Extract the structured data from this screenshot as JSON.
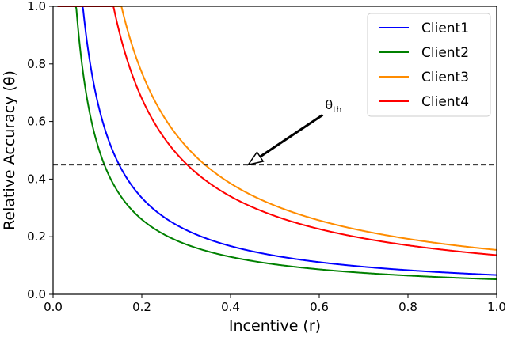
{
  "chart_data": {
    "type": "line",
    "title": "",
    "xlabel": "Incentive (r)",
    "ylabel": "Relative Accuracy (θ)",
    "xlim": [
      0,
      1
    ],
    "ylim": [
      0,
      1
    ],
    "x_ticks": [
      "0.0",
      "0.2",
      "0.4",
      "0.6",
      "0.8",
      "1.0"
    ],
    "y_ticks": [
      "0.0",
      "0.2",
      "0.4",
      "0.6",
      "0.8",
      "1.0"
    ],
    "grid": false,
    "legend_position": "top-right",
    "series": [
      {
        "name": "Client1",
        "color": "#0000ff",
        "k": 0.067,
        "x_min": 0.01,
        "x_max": 1.0
      },
      {
        "name": "Client2",
        "color": "#008000",
        "k": 0.052,
        "x_min": 0.01,
        "x_max": 1.0
      },
      {
        "name": "Client3",
        "color": "#ff8c00",
        "k": 0.154,
        "x_min": 0.01,
        "x_max": 1.0
      },
      {
        "name": "Client4",
        "color": "#ff0000",
        "k": 0.136,
        "x_min": 0.01,
        "x_max": 1.0
      }
    ],
    "threshold": {
      "y": 0.45,
      "color": "#000000",
      "style": "dashed"
    },
    "annotation": {
      "label": "θ",
      "subscript": "th",
      "point": {
        "x": 0.44,
        "y": 0.45
      }
    }
  }
}
